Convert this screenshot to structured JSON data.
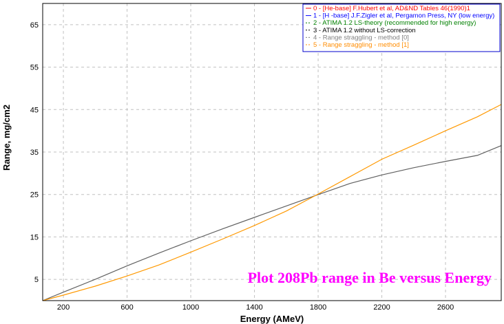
{
  "chart_data": {
    "type": "line",
    "xlabel": "Energy (AMeV)",
    "ylabel": "Range, mg/cm2",
    "xlim": [
      70,
      2950
    ],
    "ylim": [
      0,
      70
    ],
    "xticks": [
      200,
      600,
      1000,
      1400,
      1800,
      2200,
      2600
    ],
    "yticks": [
      5,
      15,
      25,
      35,
      45,
      55,
      65
    ],
    "grid": true,
    "annotation": "Plot 208Pb range in Be versus Energy",
    "annotation_color": "#ff00ff",
    "legend_position": "top-right",
    "legend": [
      {
        "label": "0 - [He-base] F.Hubert et al, AD&ND Tables 46(1990)1",
        "color": "#ff0000",
        "dash": "solid"
      },
      {
        "label": "1 - [H -base] J.F.Zigler et al, Pergamon Press, NY (low energy)",
        "color": "#0000ff",
        "dash": "solid"
      },
      {
        "label": "2 - ATIMA 1.2  LS-theory (recommended for high energy)",
        "color": "#008000",
        "dash": "dashed"
      },
      {
        "label": "3 - ATIMA 1.2  without LS-correction",
        "color": "#000000",
        "dash": "dashed"
      },
      {
        "label": "4 - Range straggling - method [0]",
        "color": "#808080",
        "dash": "dashed"
      },
      {
        "label": "5 - Range straggling - method [1]",
        "color": "#ff8c00",
        "dash": "dashed"
      }
    ],
    "series": [
      {
        "name": "3 - ATIMA 1.2  without LS-correction",
        "color": "#606060",
        "x": [
          70,
          200,
          400,
          600,
          800,
          1000,
          1200,
          1400,
          1600,
          1780,
          2000,
          2200,
          2400,
          2600,
          2800,
          2950
        ],
        "y": [
          0,
          2,
          5,
          8.2,
          11.2,
          14.1,
          16.9,
          19.6,
          22.3,
          24.7,
          27.6,
          29.6,
          31.3,
          32.8,
          34.2,
          36.5
        ]
      },
      {
        "name": "5 - Range straggling - method [1]",
        "color": "#ff9900",
        "x": [
          70,
          200,
          400,
          600,
          800,
          1000,
          1200,
          1400,
          1600,
          1780,
          2000,
          2200,
          2400,
          2600,
          2800,
          2950
        ],
        "y": [
          0,
          1.3,
          3.4,
          5.8,
          8.4,
          11.4,
          14.5,
          17.7,
          21.1,
          24.7,
          29.2,
          33.3,
          36.6,
          40.0,
          43.3,
          46.2
        ]
      }
    ]
  }
}
